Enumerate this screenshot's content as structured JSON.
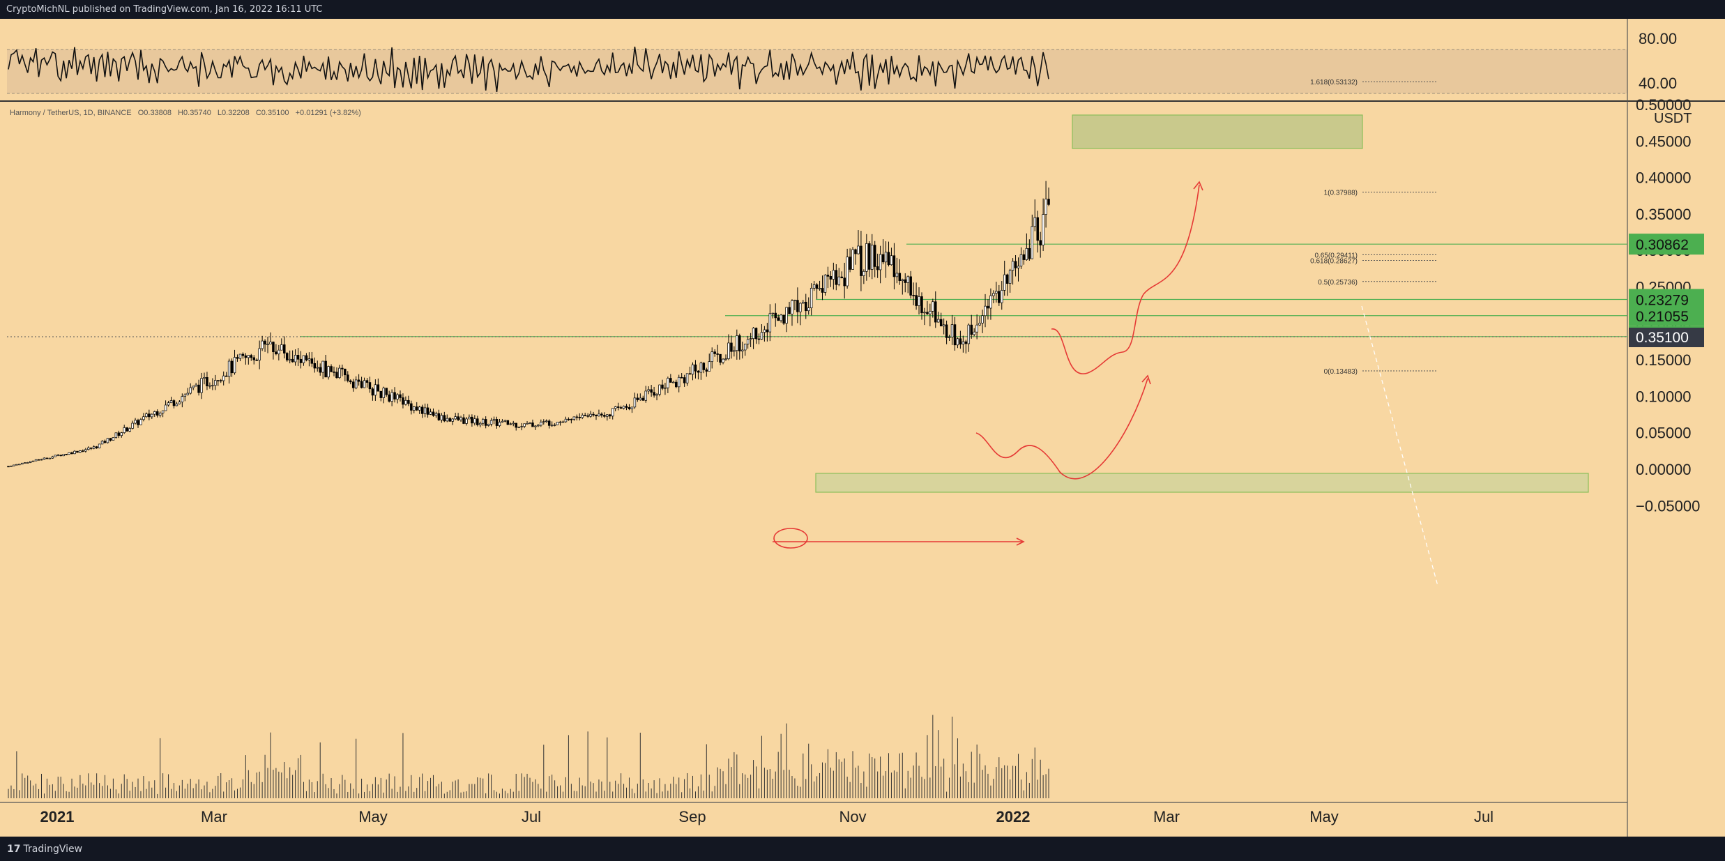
{
  "header": {
    "published_by": "CryptoMichNL published on TradingView.com, Jan 16, 2022 16:11 UTC"
  },
  "footer": {
    "brand": "TradingView",
    "logo_mark": "17"
  },
  "colors": {
    "background": "#f8d7a2",
    "rsi_band": "#e8c89c",
    "zone_fill": "#c9c98c",
    "support_line": "#4caf50",
    "label_green": "#4caf50",
    "current_price_label": "#363a45",
    "projection_red": "#e53935",
    "candle": "#000000"
  },
  "symbol_info": {
    "name": "Harmony / TetherUS, 1D, BINANCE",
    "o": "0.33808",
    "h": "0.35740",
    "l": "0.32208",
    "c": "0.35100",
    "change": "+0.01291 (+3.82%)"
  },
  "rsi": {
    "upper_level": 80,
    "lower_level": 40,
    "tick_labels": [
      "80.00",
      "40.00"
    ]
  },
  "price_axis": {
    "currency": "USDT",
    "tick_labels": [
      "0.50000",
      "0.45000",
      "0.40000",
      "0.35000",
      "0.30000",
      "0.25000",
      "0.20000",
      "0.15000",
      "0.10000",
      "0.05000",
      "0.00000",
      "−0.05000"
    ],
    "current_price": "0.35100",
    "level_labels": [
      "0.30862",
      "0.23279",
      "0.21055",
      "0.18180"
    ]
  },
  "time_axis": {
    "labels": [
      "2021",
      "Mar",
      "May",
      "Jul",
      "Sep",
      "Nov",
      "2022",
      "Mar",
      "May",
      "Jul"
    ]
  },
  "fib_levels": [
    {
      "label": "1.618(0.53132)",
      "value": 0.53132
    },
    {
      "label": "1(0.37988)",
      "value": 0.37988
    },
    {
      "label": "0.65(0.29411)",
      "value": 0.29411
    },
    {
      "label": "0.618(0.28627)",
      "value": 0.28627
    },
    {
      "label": "0.5(0.25736)",
      "value": 0.25736
    },
    {
      "label": "0(0.13483)",
      "value": 0.13483
    }
  ],
  "zones": [
    {
      "name": "fib-target-zone",
      "from": 0.512,
      "to": 0.541
    },
    {
      "name": "support-zone",
      "from": 0.217,
      "to": 0.233
    }
  ],
  "chart_data": {
    "type": "candlestick",
    "title": "Harmony / TetherUS, 1D, BINANCE",
    "ylabel": "USDT",
    "ylim": [
      -0.05,
      0.55
    ],
    "x": [
      "2021-01",
      "2021-02",
      "2021-03",
      "2021-04",
      "2021-05",
      "2021-06",
      "2021-07",
      "2021-08",
      "2021-09",
      "2021-10",
      "2021-11",
      "2021-12",
      "2022-01"
    ],
    "series": [
      {
        "name": "ONE/USDT close",
        "values": [
          0.004,
          0.03,
          0.1,
          0.17,
          0.12,
          0.07,
          0.06,
          0.08,
          0.14,
          0.22,
          0.3,
          0.17,
          0.351
        ]
      }
    ],
    "horizontal_levels": [
      0.30862,
      0.23279,
      0.21055,
      0.1818
    ],
    "current_price": 0.351
  }
}
